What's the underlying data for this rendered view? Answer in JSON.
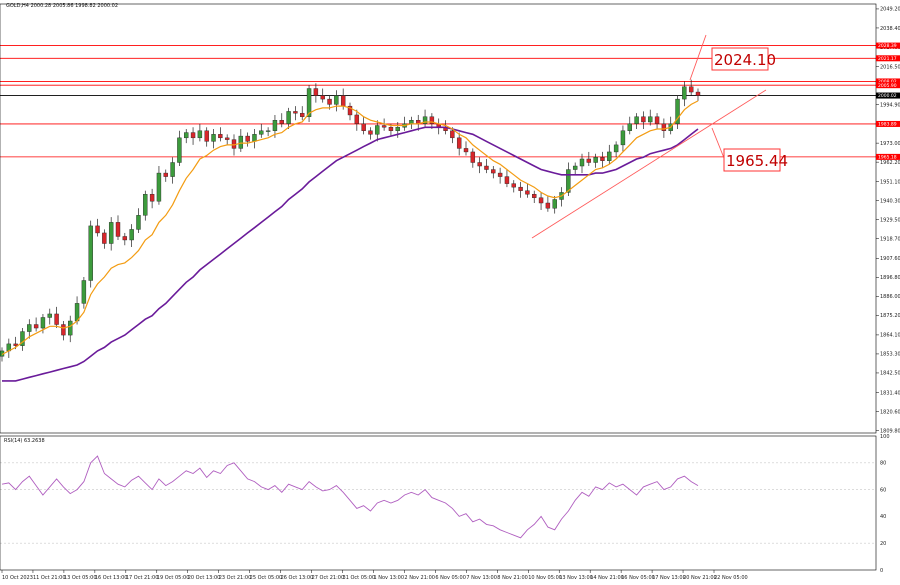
{
  "chart_data": {
    "type": "candlestick",
    "symbol_header": "GOLD,H4  2000.28 2005.86 1998.82 2000.02",
    "rsi_header": "RSI(14) 63.2638",
    "price_ticks": [
      "2049.20",
      "2038.40",
      "2027.60",
      "2016.50",
      "2005.70",
      "1994.90",
      "1983.80",
      "1973.00",
      "1962.20",
      "1951.10",
      "1940.30",
      "1929.50",
      "1918.70",
      "1907.60",
      "1896.80",
      "1886.00",
      "1875.20",
      "1864.10",
      "1853.30",
      "1842.50",
      "1831.40",
      "1820.60",
      "1809.80"
    ],
    "price_range": [
      1808.4,
      2052.0
    ],
    "rsi_ticks": [
      "100",
      "80",
      "60",
      "40",
      "20",
      "0"
    ],
    "rsi_range": [
      0,
      100
    ],
    "rsi_levels": [
      80,
      60,
      20
    ],
    "x_labels": [
      "10 Oct 2023",
      "11 Oct 21:00",
      "13 Oct 05:00",
      "16 Oct 13:00",
      "17 Oct 21:00",
      "19 Oct 05:00",
      "20 Oct 13:00",
      "23 Oct 21:00",
      "25 Oct 05:00",
      "26 Oct 13:00",
      "27 Oct 21:00",
      "31 Oct 05:00",
      "1 Nov 13:00",
      "2 Nov 21:00",
      "6 Nov 05:00",
      "7 Nov 13:00",
      "8 Nov 21:00",
      "10 Nov 05:00",
      "13 Nov 13:00",
      "14 Nov 21:00",
      "16 Nov 05:00",
      "17 Nov 13:00",
      "20 Nov 21:00",
      "22 Nov 05:00"
    ],
    "levels": [
      {
        "value": 2028.39,
        "label": "2028.39",
        "color": "#ff0000"
      },
      {
        "value": 2021.17,
        "label": "2021.17",
        "color": "#ff0000"
      },
      {
        "value": 2008.02,
        "label": "2008.02",
        "color": "#ff0000"
      },
      {
        "value": 2005.9,
        "label": "2005.90",
        "color": "#ff0000"
      },
      {
        "value": 2000.02,
        "label": "2000.02",
        "color": "#000000"
      },
      {
        "value": 1983.89,
        "label": "1983.89",
        "color": "#ff0000"
      },
      {
        "value": 1965.18,
        "label": "1965.18",
        "color": "#ff0000"
      }
    ],
    "annotations": [
      {
        "text": "2024.10",
        "value": 2024.1
      },
      {
        "text": "1965.44",
        "value": 1965.44
      }
    ],
    "close": [
      1855,
      1859,
      1858,
      1866,
      1870,
      1868,
      1874,
      1876,
      1870,
      1864,
      1872,
      1882,
      1895,
      1926,
      1922,
      1916,
      1928,
      1920,
      1918,
      1924,
      1932,
      1944,
      1940,
      1956,
      1954,
      1962,
      1976,
      1979,
      1976,
      1980,
      1974,
      1978,
      1976,
      1975,
      1970,
      1977,
      1974,
      1978,
      1980,
      1980,
      1986,
      1984,
      1991,
      1990,
      1988,
      2004,
      2000,
      1998,
      1995,
      2000,
      1994,
      1989,
      1984,
      1980,
      1978,
      1983,
      1982,
      1980,
      1982,
      1984,
      1986,
      1984,
      1988,
      1984,
      1982,
      1980,
      1976,
      1970,
      1968,
      1962,
      1960,
      1958,
      1956,
      1954,
      1950,
      1948,
      1946,
      1944,
      1942,
      1939,
      1936,
      1941,
      1945,
      1958,
      1960,
      1964,
      1962,
      1965,
      1963,
      1968,
      1972,
      1980,
      1984,
      1988,
      1985,
      1988,
      1984,
      1980,
      1984,
      1998,
      2005,
      2002,
      2000
    ],
    "ma_fast": [
      1853,
      1855,
      1857,
      1860,
      1863,
      1865,
      1867,
      1869,
      1869,
      1868,
      1869,
      1872,
      1877,
      1887,
      1893,
      1897,
      1902,
      1904,
      1905,
      1908,
      1912,
      1918,
      1921,
      1928,
      1932,
      1938,
      1946,
      1953,
      1958,
      1964,
      1966,
      1969,
      1971,
      1972,
      1972,
      1973,
      1973,
      1974,
      1975,
      1976,
      1978,
      1979,
      1982,
      1984,
      1985,
      1990,
      1992,
      1993,
      1993,
      1994,
      1994,
      1993,
      1991,
      1988,
      1986,
      1985,
      1984,
      1983,
      1983,
      1983,
      1984,
      1984,
      1985,
      1985,
      1984,
      1983,
      1981,
      1978,
      1976,
      1972,
      1969,
      1966,
      1963,
      1961,
      1958,
      1955,
      1952,
      1950,
      1948,
      1945,
      1943,
      1942,
      1943,
      1946,
      1949,
      1952,
      1955,
      1958,
      1959,
      1961,
      1964,
      1968,
      1972,
      1976,
      1978,
      1980,
      1981,
      1981,
      1982,
      1987,
      1992,
      1995,
      1997
    ],
    "ma_slow": [
      1838,
      1838,
      1838,
      1839,
      1840,
      1841,
      1842,
      1843,
      1844,
      1845,
      1846,
      1847,
      1849,
      1852,
      1855,
      1857,
      1860,
      1862,
      1864,
      1867,
      1870,
      1873,
      1875,
      1879,
      1882,
      1886,
      1890,
      1894,
      1897,
      1901,
      1904,
      1907,
      1910,
      1913,
      1916,
      1919,
      1922,
      1925,
      1928,
      1931,
      1934,
      1937,
      1941,
      1944,
      1947,
      1951,
      1954,
      1957,
      1960,
      1963,
      1965,
      1967,
      1969,
      1971,
      1973,
      1975,
      1976,
      1977,
      1978,
      1979,
      1980,
      1981,
      1982,
      1982,
      1982,
      1982,
      1981,
      1980,
      1979,
      1978,
      1976,
      1974,
      1972,
      1970,
      1968,
      1966,
      1964,
      1962,
      1960,
      1958,
      1957,
      1956,
      1955,
      1955,
      1955,
      1955,
      1955,
      1956,
      1956,
      1957,
      1958,
      1960,
      1962,
      1964,
      1965,
      1967,
      1968,
      1969,
      1970,
      1972,
      1975,
      1978,
      1981
    ],
    "rsi": [
      64,
      65,
      60,
      66,
      70,
      63,
      56,
      62,
      68,
      62,
      57,
      60,
      66,
      80,
      85,
      72,
      68,
      64,
      62,
      67,
      70,
      65,
      60,
      68,
      63,
      66,
      70,
      74,
      72,
      76,
      69,
      74,
      72,
      78,
      80,
      74,
      68,
      66,
      62,
      60,
      63,
      58,
      64,
      62,
      60,
      66,
      62,
      59,
      60,
      63,
      58,
      52,
      46,
      48,
      44,
      50,
      52,
      50,
      52,
      56,
      58,
      56,
      60,
      54,
      52,
      50,
      46,
      40,
      42,
      36,
      38,
      34,
      33,
      30,
      28,
      26,
      24,
      30,
      34,
      40,
      32,
      30,
      38,
      44,
      52,
      58,
      55,
      62,
      60,
      65,
      62,
      64,
      60,
      56,
      62,
      64,
      66,
      60,
      62,
      68,
      70,
      66,
      63
    ]
  }
}
